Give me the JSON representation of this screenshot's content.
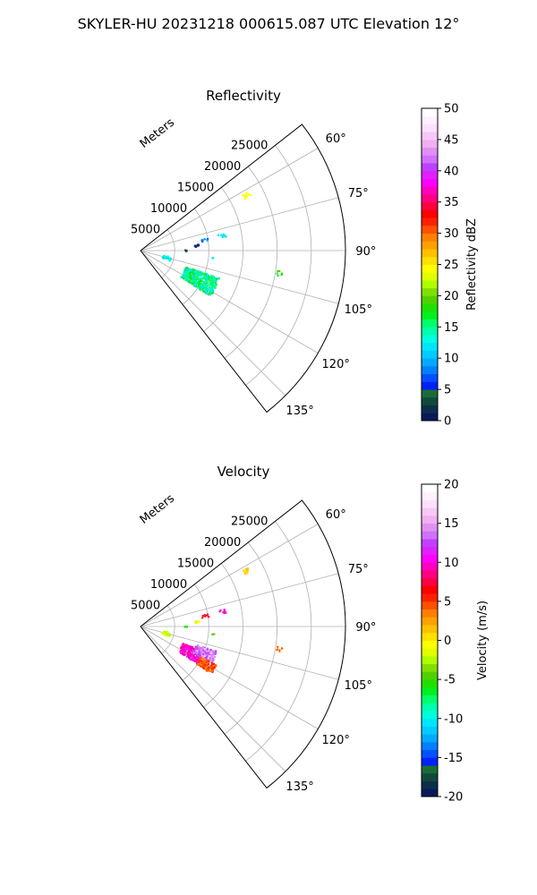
{
  "figure_title": "SKYLER-HU  20231218  000615.087 UTC Elevation 12°",
  "chart_data": [
    {
      "type": "polar-sector",
      "title": "Reflectivity",
      "radial_label": "Meters",
      "radial_ticks": [
        "5000",
        "10000",
        "15000",
        "20000",
        "25000"
      ],
      "radial_tick_values": [
        5000,
        10000,
        15000,
        20000,
        25000
      ],
      "rmax": 30000,
      "azimuth_range_deg": [
        52,
        142
      ],
      "azimuth_ticks": [
        "60°",
        "75°",
        "90°",
        "105°",
        "120°",
        "135°"
      ],
      "azimuth_tick_values": [
        60,
        75,
        90,
        105,
        120,
        135
      ],
      "colorbar": {
        "label": "Reflectivity dBZ",
        "min": 0,
        "max": 50,
        "ticks": [
          "0",
          "5",
          "10",
          "15",
          "20",
          "25",
          "30",
          "35",
          "40",
          "45",
          "50"
        ],
        "tick_values": [
          0,
          5,
          10,
          15,
          20,
          25,
          30,
          35,
          40,
          45,
          50
        ],
        "colors": [
          "#071a5c",
          "#0d2e4a",
          "#0f4a3a",
          "#1a6b3a",
          "#0020ff",
          "#0050ff",
          "#0080ff",
          "#00aaff",
          "#00ccff",
          "#00e5ff",
          "#00ffdd",
          "#00ffaa",
          "#00ff66",
          "#00f020",
          "#20e000",
          "#50d000",
          "#80e000",
          "#b0ff00",
          "#e0ff00",
          "#ffff00",
          "#ffe000",
          "#ffc000",
          "#ffa000",
          "#ff8000",
          "#ff5000",
          "#ff2000",
          "#ff0000",
          "#ff0040",
          "#ff0080",
          "#ff00c0",
          "#ff00ff",
          "#e020ff",
          "#c040ff",
          "#d070ff",
          "#e090f0",
          "#f0b0f0",
          "#f6c8f6",
          "#fbe0fb",
          "#fff0ff",
          "#ffffff"
        ]
      },
      "echoes": [
        {
          "az": 116,
          "r": 9500,
          "rspread": 2600,
          "azspread": 7,
          "n": 420,
          "values": [
            12,
            14,
            16,
            18
          ]
        },
        {
          "az": 104,
          "r": 3800,
          "rspread": 600,
          "azspread": 4,
          "n": 30,
          "values": [
            11,
            13
          ]
        },
        {
          "az": 62,
          "r": 17500,
          "rspread": 500,
          "azspread": 1.2,
          "n": 12,
          "values": [
            24
          ]
        },
        {
          "az": 79,
          "r": 12000,
          "rspread": 600,
          "azspread": 1.2,
          "n": 10,
          "values": [
            12
          ]
        },
        {
          "az": 80,
          "r": 9500,
          "rspread": 500,
          "azspread": 1.2,
          "n": 8,
          "values": [
            7,
            9
          ]
        },
        {
          "az": 84,
          "r": 8200,
          "rspread": 400,
          "azspread": 1.2,
          "n": 10,
          "values": [
            2,
            4,
            6
          ]
        },
        {
          "az": 89,
          "r": 6500,
          "rspread": 200,
          "azspread": 0.8,
          "n": 3,
          "values": [
            3
          ]
        },
        {
          "az": 95,
          "r": 10500,
          "rspread": 200,
          "azspread": 0.8,
          "n": 3,
          "values": [
            13
          ]
        },
        {
          "az": 99,
          "r": 20500,
          "rspread": 400,
          "azspread": 1,
          "n": 6,
          "values": [
            17,
            19
          ]
        }
      ]
    },
    {
      "type": "polar-sector",
      "title": "Velocity",
      "radial_label": "Meters",
      "radial_ticks": [
        "5000",
        "10000",
        "15000",
        "20000",
        "25000"
      ],
      "radial_tick_values": [
        5000,
        10000,
        15000,
        20000,
        25000
      ],
      "rmax": 30000,
      "azimuth_range_deg": [
        52,
        142
      ],
      "azimuth_ticks": [
        "60°",
        "75°",
        "90°",
        "105°",
        "120°",
        "135°"
      ],
      "azimuth_tick_values": [
        60,
        75,
        90,
        105,
        120,
        135
      ],
      "colorbar": {
        "label": "Velocity (m/s)",
        "min": -20,
        "max": 20,
        "ticks": [
          "-20",
          "-15",
          "-10",
          "-5",
          "0",
          "5",
          "10",
          "15",
          "20"
        ],
        "tick_values": [
          -20,
          -15,
          -10,
          -5,
          0,
          5,
          10,
          15,
          20
        ],
        "colors": [
          "#071a5c",
          "#0d2e4a",
          "#0f4a3a",
          "#1a6b3a",
          "#0020ff",
          "#0050ff",
          "#0080ff",
          "#00aaff",
          "#00ccff",
          "#00e5ff",
          "#00ffdd",
          "#00ffaa",
          "#00ff66",
          "#00f020",
          "#20e000",
          "#50d000",
          "#80e000",
          "#b0ff00",
          "#e0ff00",
          "#ffff00",
          "#ffe000",
          "#ffc000",
          "#ffa000",
          "#ff8000",
          "#ff5000",
          "#ff2000",
          "#ff0000",
          "#ff0040",
          "#ff0080",
          "#ff00c0",
          "#ff00ff",
          "#e020ff",
          "#c040ff",
          "#d070ff",
          "#e090f0",
          "#f0b0f0",
          "#f6c8f6",
          "#fbe0fb",
          "#fff0ff",
          "#ffffff"
        ]
      },
      "echoes": [
        {
          "az": 117,
          "r": 8200,
          "rspread": 1700,
          "azspread": 6,
          "n": 240,
          "values": [
            8,
            9,
            10,
            11
          ]
        },
        {
          "az": 112,
          "r": 10000,
          "rspread": 1600,
          "azspread": 4.5,
          "n": 200,
          "values": [
            12,
            13,
            14,
            16
          ]
        },
        {
          "az": 120,
          "r": 11000,
          "rspread": 1300,
          "azspread": 3.5,
          "n": 120,
          "values": [
            3,
            4,
            5
          ]
        },
        {
          "az": 104,
          "r": 3800,
          "rspread": 600,
          "azspread": 4,
          "n": 30,
          "values": [
            -3,
            -2
          ]
        },
        {
          "az": 62,
          "r": 17500,
          "rspread": 500,
          "azspread": 1.2,
          "n": 12,
          "values": [
            0,
            1
          ]
        },
        {
          "az": 79,
          "r": 12000,
          "rspread": 600,
          "azspread": 1.2,
          "n": 10,
          "values": [
            9,
            11
          ]
        },
        {
          "az": 80,
          "r": 9500,
          "rspread": 500,
          "azspread": 1.2,
          "n": 8,
          "values": [
            5,
            7
          ]
        },
        {
          "az": 84,
          "r": 8200,
          "rspread": 400,
          "azspread": 1.2,
          "n": 10,
          "values": [
            -2,
            -1
          ]
        },
        {
          "az": 89,
          "r": 6500,
          "rspread": 200,
          "azspread": 0.8,
          "n": 3,
          "values": [
            -6
          ]
        },
        {
          "az": 95,
          "r": 10500,
          "rspread": 200,
          "azspread": 0.8,
          "n": 3,
          "values": [
            -5
          ]
        },
        {
          "az": 99,
          "r": 20500,
          "rspread": 400,
          "azspread": 1,
          "n": 6,
          "values": [
            2,
            4
          ]
        }
      ]
    }
  ]
}
